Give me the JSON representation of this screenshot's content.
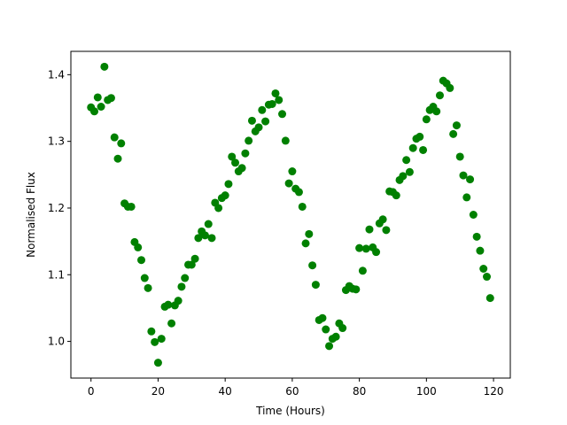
{
  "chart_data": {
    "type": "scatter",
    "title": "",
    "xlabel": "Time (Hours)",
    "ylabel": "Normalised Flux",
    "xlim": [
      -6,
      125
    ],
    "ylim": [
      0.945,
      1.435
    ],
    "xticks": [
      0,
      20,
      40,
      60,
      80,
      100,
      120
    ],
    "xtick_labels": [
      "0",
      "20",
      "40",
      "60",
      "80",
      "100",
      "120"
    ],
    "yticks": [
      1.0,
      1.1,
      1.2,
      1.3,
      1.4
    ],
    "ytick_labels": [
      "1.0",
      "1.1",
      "1.2",
      "1.3",
      "1.4"
    ],
    "grid": false,
    "legend": "none",
    "marker_color": "#008000",
    "series": [
      {
        "x": [
          0,
          1,
          2,
          3,
          4,
          5,
          6,
          7,
          8,
          9,
          10,
          11,
          12,
          13,
          14,
          15,
          16,
          17,
          18,
          19,
          20,
          21,
          22,
          23,
          24,
          25,
          26,
          27,
          28,
          29,
          30,
          31,
          32,
          33,
          34,
          35,
          36,
          37,
          38,
          39,
          40,
          41,
          42,
          43,
          44,
          45,
          46,
          47,
          48,
          49,
          50,
          51,
          52,
          53,
          54,
          55,
          56,
          57,
          58,
          59,
          60,
          61,
          62,
          63,
          64,
          65,
          66,
          67,
          68,
          69,
          70,
          71,
          72,
          73,
          74,
          75,
          76,
          77,
          78,
          79,
          80,
          81,
          82,
          83,
          84,
          85,
          86,
          87,
          88,
          89,
          90,
          91,
          92,
          93,
          94,
          95,
          96,
          97,
          98,
          99,
          100,
          101,
          102,
          103,
          104,
          105,
          106,
          107,
          108,
          109,
          110,
          111,
          112,
          113,
          114,
          115,
          116,
          117,
          118,
          119
        ],
        "y": [
          1.351,
          1.345,
          1.366,
          1.352,
          1.412,
          1.362,
          1.365,
          1.306,
          1.274,
          1.297,
          1.207,
          1.202,
          1.202,
          1.149,
          1.141,
          1.122,
          1.095,
          1.08,
          1.015,
          0.999,
          0.968,
          1.004,
          1.052,
          1.055,
          1.027,
          1.054,
          1.061,
          1.082,
          1.095,
          1.115,
          1.115,
          1.124,
          1.155,
          1.165,
          1.159,
          1.176,
          1.155,
          1.208,
          1.2,
          1.215,
          1.219,
          1.236,
          1.277,
          1.268,
          1.255,
          1.26,
          1.282,
          1.301,
          1.331,
          1.315,
          1.321,
          1.347,
          1.33,
          1.355,
          1.356,
          1.372,
          1.362,
          1.341,
          1.301,
          1.237,
          1.255,
          1.229,
          1.224,
          1.202,
          1.147,
          1.161,
          1.114,
          1.085,
          1.032,
          1.035,
          1.018,
          0.993,
          1.004,
          1.007,
          1.027,
          1.02,
          1.077,
          1.083,
          1.079,
          1.078,
          1.14,
          1.106,
          1.139,
          1.168,
          1.141,
          1.134,
          1.177,
          1.183,
          1.167,
          1.225,
          1.224,
          1.219,
          1.242,
          1.248,
          1.272,
          1.254,
          1.29,
          1.304,
          1.307,
          1.287,
          1.333,
          1.347,
          1.352,
          1.345,
          1.369,
          1.391,
          1.387,
          1.38,
          1.311,
          1.324,
          1.277,
          1.249,
          1.216,
          1.243,
          1.19,
          1.157,
          1.136,
          1.109,
          1.097,
          1.065
        ]
      }
    ]
  }
}
